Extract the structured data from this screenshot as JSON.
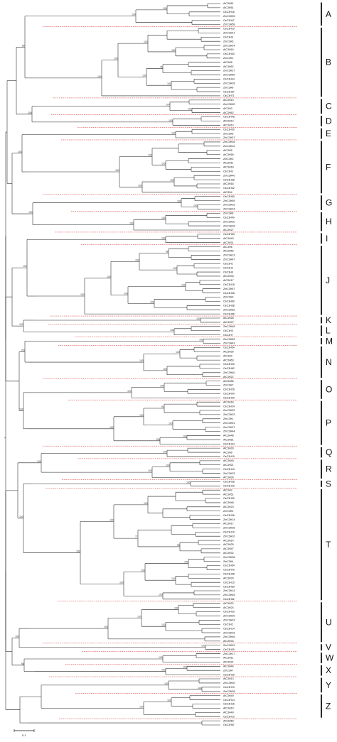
{
  "groups": [
    {
      "label": "A",
      "leaves": [
        "AtC3H61",
        "AtC3H51",
        "OsC3H16",
        "ZmC3H25",
        "OsC3H47",
        "ZmC3H58"
      ],
      "boot": [
        "100",
        "100"
      ]
    },
    {
      "label": "B",
      "leaves": [
        "OsC3H10",
        "ZmC3H41",
        "OsC3H9",
        "ZmC3H5",
        "ZmC3H24",
        "AtC3H16",
        "OsC3H40",
        "ZmC3H1",
        "AtC3H8",
        "AtC3H52",
        "ZmC3H27",
        "ZmC3H60",
        "OsC3H44",
        "ZmC3H28",
        "ZmC3H6",
        "OsC3H67",
        "OsC3H71"
      ],
      "boot": [
        "100",
        "100",
        "100",
        "100",
        "100",
        "75",
        "100"
      ]
    },
    {
      "label": "C",
      "leaves": [
        "AtC3H10",
        "ZmC3H59",
        "AtC3H3",
        "AtC3H62"
      ],
      "boot": [
        "100",
        "100"
      ]
    },
    {
      "label": "D",
      "leaves": [
        "OsC3H48",
        "AtC3H12",
        "AtC3H19"
      ],
      "boot": [
        "100"
      ]
    },
    {
      "label": "E",
      "leaves": [
        "OsC3H30",
        "ZmC3H5",
        "ZmC3H37"
      ],
      "boot": [
        "100"
      ]
    },
    {
      "label": "F",
      "leaves": [
        "ZmC3H16",
        "ZmC3H12",
        "AtC3H5",
        "AtC3H59",
        "ZmC3H3",
        "AtC3H11",
        "AtC3H18",
        "OsC3H3",
        "ZmC3H40",
        "OsC3H38",
        "AtC3H18",
        "OsC3H42",
        "AtC3H4"
      ],
      "boot": [
        "100",
        "100",
        "100",
        "100",
        "100"
      ]
    },
    {
      "label": "G",
      "leaves": [
        "OsC3H50",
        "ZmC3H59",
        "ZmC3H16",
        "ZmC3H24"
      ],
      "boot": [
        "100",
        "100"
      ]
    },
    {
      "label": "H",
      "leaves": [
        "ZmC3H8",
        "OsC3H40",
        "ZmC3H20",
        "ZmC3H28",
        "AtC3H27"
      ],
      "boot": [
        "100",
        "100"
      ]
    },
    {
      "label": "I",
      "leaves": [
        "OsC3H53",
        "AtC3H43",
        "AtC3H31"
      ],
      "boot": [
        "100"
      ]
    },
    {
      "label": "J",
      "leaves": [
        "AtC3H6",
        "AtC3H52",
        "ZmC3H13",
        "ZmC3H47",
        "OsC3H1",
        "OsC3H4",
        "OsC3H6",
        "AtC3H33",
        "AtC3H17",
        "OsC3H18",
        "ZmC3H57",
        "OsC3H28",
        "ZmC3H9",
        "OsC3H60",
        "OsC3H58",
        "ZmC3H52",
        "OsC3H66"
      ],
      "boot": [
        "100",
        "100",
        "100",
        "100",
        "100",
        "100",
        "100",
        "98"
      ]
    },
    {
      "label": "K",
      "leaves": [
        "AtC3H28",
        "AtC3H37"
      ],
      "boot": [
        "100"
      ]
    },
    {
      "label": "L",
      "leaves": [
        "ZmC3H48",
        "OsC3H3",
        "OsC3H7"
      ],
      "boot": [
        "100"
      ]
    },
    {
      "label": "M",
      "leaves": [
        "ZmC3H63",
        "ZmC3H43"
      ],
      "boot": [
        "100"
      ]
    },
    {
      "label": "N",
      "leaves": [
        "OsC3H54",
        "AtC3H30",
        "AtC3H4",
        "AtC3H63",
        "OsC3H40",
        "OsC3H62",
        "ZmC3H40",
        "AtC3H21"
      ],
      "boot": [
        "100",
        "100",
        "100"
      ]
    },
    {
      "label": "O",
      "leaves": [
        "AtC3H56",
        "ZmC3H7",
        "OsC3H26",
        "OsC3H34",
        "OsC3H20"
      ],
      "boot": [
        "100",
        "100"
      ]
    },
    {
      "label": "P",
      "leaves": [
        "AtC3H18",
        "OsC3H24",
        "ZmC3H32",
        "ZmC3H33",
        "ZmC3H1",
        "ZmC3H51",
        "ZmC3H27",
        "ZmC3H44",
        "AtC3H48",
        "AtC3H51",
        "OsC3H44"
      ],
      "boot": [
        "100",
        "100",
        "100",
        "100",
        "92",
        "100"
      ]
    },
    {
      "label": "Q",
      "leaves": [
        "AtC3H30",
        "AtC3H6",
        "OsC3H19"
      ],
      "boot": [
        "100"
      ]
    },
    {
      "label": "R",
      "leaves": [
        "AtC3H49",
        "AtC3H21",
        "OsC3H13",
        "ZmC3H33",
        "AtC3H28"
      ],
      "boot": [
        "100",
        "100"
      ]
    },
    {
      "label": "S",
      "leaves": [
        "OsC3H38",
        "OsC3H23"
      ],
      "boot": [
        "100"
      ]
    },
    {
      "label": "T",
      "leaves": [
        "AtC3H2",
        "AtC3H51",
        "OsC3H20",
        "AtC3H48",
        "AtC3H23",
        "ZmC3H2",
        "OsC3H26",
        "ZmC3H14",
        "AtC3H17",
        "ZmC3H26",
        "OsC3H10",
        "ZmC3H10",
        "AtC3H14",
        "AtC3H29",
        "AtC3H47",
        "AtC3H32",
        "ZmC3H28",
        "ZmC3H4",
        "OsC3H54",
        "OsC3H43",
        "OsC3H38",
        "AtC3H33",
        "OsC3H15",
        "OsC3H59",
        "ZmC3H14",
        "ZmC3H45",
        "OsC3H62"
      ],
      "boot": [
        "100",
        "100",
        "100",
        "100",
        "77",
        "100",
        "100",
        "100",
        "100",
        "98"
      ]
    },
    {
      "label": "U",
      "leaves": [
        "AtC3H22",
        "AtC3H24",
        "OsC3H29",
        "ZmC3H20",
        "ZmC3H23",
        "OsC3H2",
        "OsC3H14",
        "ZmC3H15",
        "ZmC3H46",
        "AtC3H34"
      ],
      "boot": [
        "100",
        "100",
        "100",
        "100"
      ]
    },
    {
      "label": "V",
      "leaves": [
        "ZmC3H51",
        "OsC3H39"
      ],
      "boot": [
        "100"
      ]
    },
    {
      "label": "W",
      "leaves": [
        "ZmC3H17",
        "AtC3H11",
        "AtC3H21"
      ],
      "boot": [
        "100"
      ]
    },
    {
      "label": "X",
      "leaves": [
        "AtC3H44",
        "ZmC3H7",
        "OsC3H39"
      ],
      "boot": [
        "100",
        "100"
      ]
    },
    {
      "label": "Y",
      "leaves": [
        "AtC3H13",
        "ZmC3H30",
        "OsC3H19",
        "ZmC3H38"
      ],
      "boot": [
        "100",
        "100"
      ]
    },
    {
      "label": "Z",
      "leaves": [
        "AtC3H49",
        "OsC3H14",
        "OsC3H16",
        "AtC3H19",
        "AtC3H49",
        "OsC3H10"
      ],
      "boot": [
        "100",
        "100"
      ]
    },
    {
      "label": "",
      "leaves": [
        "AtC3H60",
        "OsC3H67"
      ],
      "boot": []
    }
  ],
  "backbone_boot": [
    "80",
    "100",
    "100",
    "100",
    "100",
    "100",
    "100",
    "100",
    "100",
    "100",
    "100",
    "98"
  ],
  "scale_label": "0.1",
  "colors": {
    "line": "#222222",
    "outgroup": "#d22222",
    "label": "#111111",
    "bar": "#111111"
  }
}
